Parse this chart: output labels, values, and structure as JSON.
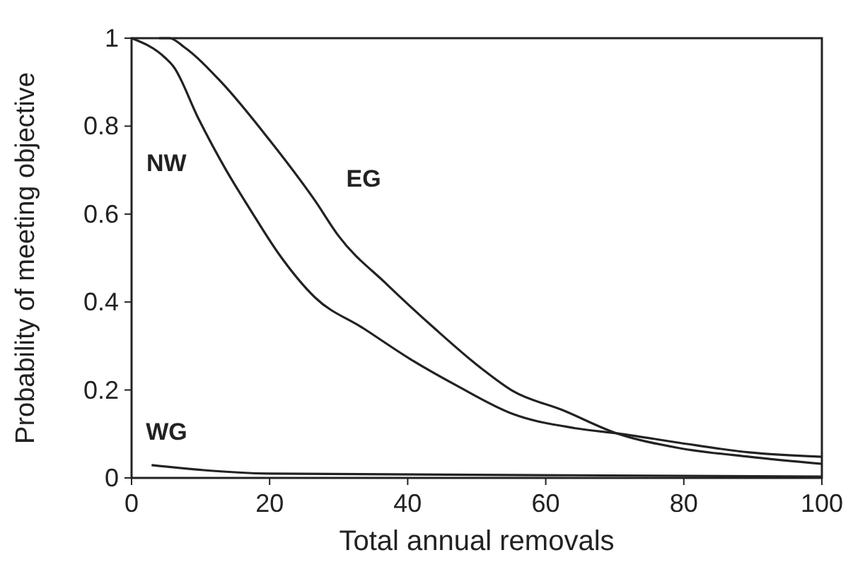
{
  "chart_data": {
    "type": "line",
    "xlabel": "Total annual removals",
    "ylabel": "Probability of meeting objective",
    "xlim": [
      0,
      100
    ],
    "ylim": [
      0,
      1
    ],
    "xticks": [
      0,
      20,
      40,
      60,
      80,
      100
    ],
    "yticks": [
      0,
      {
        "value": 0.2,
        "label": "0.2"
      },
      {
        "value": 0.4,
        "label": "0.4"
      },
      {
        "value": 0.6,
        "label": "0.6"
      },
      {
        "value": 0.8,
        "label": "0.8"
      },
      1
    ],
    "grid": false,
    "marker": "none",
    "line_style": "solid",
    "series": [
      {
        "name": "NW",
        "color": "#222222",
        "x": [
          0,
          4.9,
          6.1,
          9.6,
          13.7,
          17.2,
          21.3,
          26.6,
          33.6,
          40.4,
          47.1,
          55.3,
          64.3,
          71,
          79.3,
          89.5,
          100
        ],
        "values": [
          1,
          0.955,
          0.935,
          0.82,
          0.7,
          0.61,
          0.51,
          0.41,
          0.34,
          0.27,
          0.21,
          0.145,
          0.113,
          0.1,
          0.08,
          0.058,
          0.048
        ]
      },
      {
        "name": "EG",
        "color": "#222222",
        "x": [
          4,
          5.5,
          7.6,
          13,
          19.9,
          26.6,
          30,
          37,
          43.9,
          50.6,
          55.3,
          62.3,
          70.5,
          79.3,
          89.5,
          100
        ],
        "values": [
          1,
          1,
          0.98,
          0.9,
          0.77,
          0.63,
          0.55,
          0.44,
          0.34,
          0.25,
          0.197,
          0.155,
          0.1,
          0.068,
          0.048,
          0.032
        ]
      },
      {
        "name": "WG",
        "color": "#222222",
        "x": [
          2.9,
          19.9,
          64,
          100
        ],
        "values": [
          0.029,
          0.01,
          0.006,
          0.003
        ]
      }
    ]
  }
}
